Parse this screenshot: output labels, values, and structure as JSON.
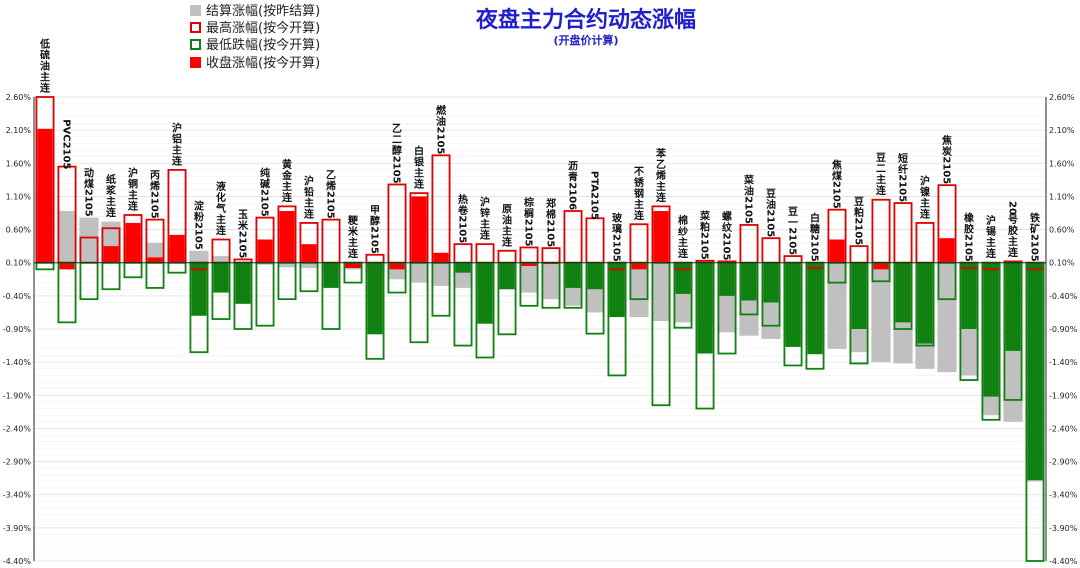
{
  "chart_data": {
    "type": "bar",
    "title": "夜盘主力合约动态涨幅",
    "subtitle": "(开盘价计算)",
    "ylim": [
      -4.4,
      2.6
    ],
    "yticks": [
      2.6,
      2.1,
      1.6,
      1.1,
      0.6,
      0.1,
      -0.4,
      -0.9,
      -1.4,
      -1.9,
      -2.4,
      -2.9,
      -3.4,
      -3.9,
      -4.4
    ],
    "ytick_labels": [
      "2.60%",
      "2.10%",
      "1.60%",
      "1.10%",
      "0.60%",
      "0.10%",
      "-0.40%",
      "-0.90%",
      "-1.40%",
      "-1.90%",
      "-2.40%",
      "-2.90%",
      "-3.40%",
      "-3.90%",
      "-4.40%"
    ],
    "legend_position": "top-left",
    "legend": [
      {
        "name": "结算涨幅(按昨结算)",
        "kind": "settle",
        "color": "#c0c0c0"
      },
      {
        "name": "最高涨幅(按今开算)",
        "kind": "high",
        "color": "#e00000"
      },
      {
        "name": "最低跌幅(按今开算)",
        "kind": "low",
        "color": "#108010"
      },
      {
        "name": "收盘涨幅(按今开算)",
        "kind": "close",
        "color": "#ff0000"
      }
    ],
    "categories": [
      "低硫油主连",
      "PVC2105",
      "动煤2105",
      "纸浆主连",
      "沪铜主连",
      "丙烯2105",
      "沪铝主连",
      "淀粉2105",
      "液化气主连",
      "玉米2105",
      "纯碱2105",
      "黄金主连",
      "沪铅主连",
      "乙烯2105",
      "粳米主连",
      "甲醇2105",
      "乙二醇2105",
      "白银主连",
      "燃油2105",
      "热卷2105",
      "沪锌主连",
      "原油主连",
      "棕榈2105",
      "郑棉2105",
      "沥青2106",
      "PTA2105",
      "玻璃2105",
      "不锈钢主连",
      "苯乙烯主连",
      "棉纱主连",
      "菜粕2105",
      "螺纹2105",
      "菜油2105",
      "豆油2105",
      "豆一2105",
      "白糖2105",
      "焦煤2105",
      "豆粕2105",
      "豆二主连",
      "短纤2105",
      "沪镍主连",
      "焦炭2105",
      "橡胶2105",
      "沪锡主连",
      "20号胶主连",
      "铁矿2105"
    ],
    "series": [
      {
        "name": "结算涨幅(按昨结算)",
        "values": [
          1.18,
          0.88,
          0.78,
          0.72,
          0.52,
          0.4,
          0.33,
          0.28,
          0.2,
          0.12,
          0.07,
          0.03,
          0.02,
          0.02,
          0.0,
          -0.05,
          -0.15,
          -0.2,
          -0.25,
          -0.28,
          -0.28,
          -0.3,
          -0.35,
          -0.45,
          -0.55,
          -0.65,
          -0.68,
          -0.72,
          -0.78,
          -0.8,
          -0.85,
          -0.95,
          -1.0,
          -1.05,
          -1.1,
          -1.15,
          -1.2,
          -1.25,
          -1.4,
          -1.42,
          -1.5,
          -1.55,
          -1.6,
          -2.2,
          -2.3,
          -3.2
        ]
      },
      {
        "name": "最高涨幅(按今开算)",
        "values": [
          2.6,
          1.55,
          0.48,
          0.62,
          0.82,
          0.75,
          1.5,
          0.0,
          0.45,
          0.15,
          0.78,
          0.95,
          0.7,
          0.75,
          0.05,
          0.22,
          1.28,
          1.15,
          1.72,
          0.38,
          0.38,
          0.28,
          0.33,
          0.32,
          0.88,
          0.77,
          0.0,
          0.68,
          0.95,
          0.0,
          0.13,
          0.12,
          0.67,
          0.47,
          0.2,
          0.02,
          0.9,
          0.35,
          1.05,
          1.0,
          0.7,
          1.27,
          0.02,
          0.0,
          0.12,
          0.0
        ]
      },
      {
        "name": "最低跌幅(按今开算)",
        "values": [
          0.0,
          -0.8,
          -0.45,
          -0.3,
          -0.12,
          -0.28,
          -0.05,
          -1.25,
          -0.75,
          -0.9,
          -0.85,
          -0.45,
          -0.33,
          -0.9,
          -0.2,
          -1.35,
          -0.35,
          -1.1,
          -0.7,
          -1.15,
          -1.33,
          -0.98,
          -0.55,
          -0.58,
          -0.58,
          -0.97,
          -1.6,
          -0.45,
          -2.05,
          -0.88,
          -2.1,
          -1.27,
          -0.68,
          -0.85,
          -1.45,
          -1.5,
          -0.2,
          -1.42,
          -0.18,
          -0.9,
          -1.15,
          -0.45,
          -1.67,
          -2.27,
          -1.97,
          -4.4
        ]
      },
      {
        "name": "收盘涨幅(按今开算)",
        "values": [
          2.12,
          0.0,
          0.1,
          0.35,
          0.7,
          0.18,
          0.52,
          -0.7,
          -0.35,
          -0.52,
          0.45,
          0.88,
          0.38,
          -0.28,
          0.02,
          -0.98,
          0.0,
          1.1,
          0.25,
          -0.05,
          -0.82,
          -0.3,
          0.05,
          0.08,
          -0.28,
          -0.3,
          -0.72,
          0.0,
          0.88,
          -0.37,
          -1.27,
          -0.4,
          -0.47,
          -0.5,
          -1.17,
          -1.28,
          0.45,
          -0.9,
          0.0,
          -0.8,
          -1.12,
          0.47,
          -0.9,
          -1.92,
          -1.23,
          -3.18
        ]
      }
    ]
  }
}
